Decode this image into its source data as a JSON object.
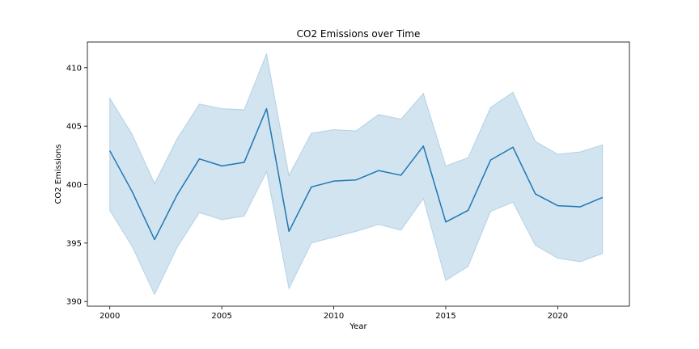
{
  "chart_data": {
    "type": "line",
    "title": "CO2 Emissions over Time",
    "xlabel": "Year",
    "ylabel": "CO2 Emissions",
    "xlim": [
      1999,
      2023.2
    ],
    "ylim": [
      389.6,
      412.2
    ],
    "xticks": [
      2000,
      2005,
      2010,
      2015,
      2020
    ],
    "yticks": [
      390,
      395,
      400,
      405,
      410
    ],
    "grid": false,
    "legend": "none",
    "colors": {
      "line": "#1f77b4",
      "band": "#1f77b4"
    },
    "series": [
      {
        "x": [
          2000,
          2001,
          2002,
          2003,
          2004,
          2005,
          2006,
          2007,
          2008,
          2009,
          2010,
          2011,
          2012,
          2013,
          2014,
          2015,
          2016,
          2017,
          2018,
          2019,
          2020,
          2021,
          2022
        ],
        "y": [
          402.9,
          399.4,
          395.3,
          399.1,
          402.2,
          401.6,
          401.9,
          406.5,
          396.0,
          399.8,
          400.3,
          400.4,
          401.2,
          400.8,
          403.3,
          396.8,
          397.8,
          402.1,
          403.2,
          399.2,
          398.2,
          398.1,
          398.9
        ],
        "upper": [
          407.4,
          404.3,
          400.1,
          403.9,
          406.9,
          406.5,
          406.4,
          411.2,
          400.8,
          404.4,
          404.7,
          404.6,
          406.0,
          405.6,
          407.8,
          401.6,
          402.3,
          406.6,
          407.9,
          403.7,
          402.6,
          402.8,
          403.4
        ],
        "lower": [
          397.8,
          394.7,
          390.6,
          394.6,
          397.6,
          397.0,
          397.3,
          401.1,
          391.1,
          395.0,
          395.5,
          396.0,
          396.6,
          396.1,
          398.8,
          391.8,
          393.0,
          397.7,
          398.5,
          394.8,
          393.7,
          393.4,
          394.1
        ]
      }
    ]
  }
}
